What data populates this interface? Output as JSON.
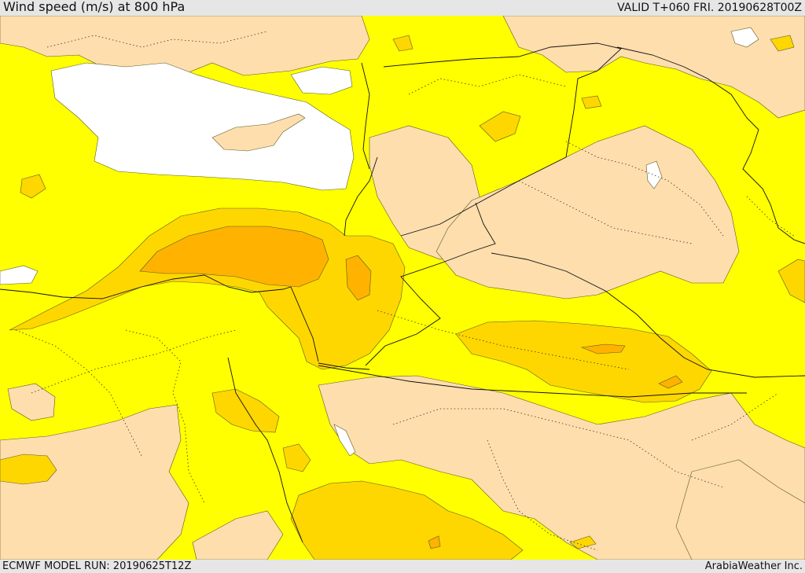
{
  "header": {
    "title": "Wind speed (m/s) at 800 hPa",
    "valid": "VALID T+060 FRI. 20190628T00Z"
  },
  "footer": {
    "model_run": "ECMWF MODEL RUN: 20190625T12Z",
    "credit": "ArabiaWeather Inc."
  },
  "colors": {
    "background_bar": "#e6e6e6",
    "band_lowest": "#ffdead",
    "band_low": "#ffff00",
    "band_mid": "#ffd700",
    "band_high": "#ffb300",
    "band_highest": "#f5a623",
    "water_masked": "#ffffff"
  },
  "map": {
    "region": "Eastern Mediterranean / Middle East",
    "field": "wind speed contour bands",
    "borders": "solid country borders, dotted province lines"
  }
}
